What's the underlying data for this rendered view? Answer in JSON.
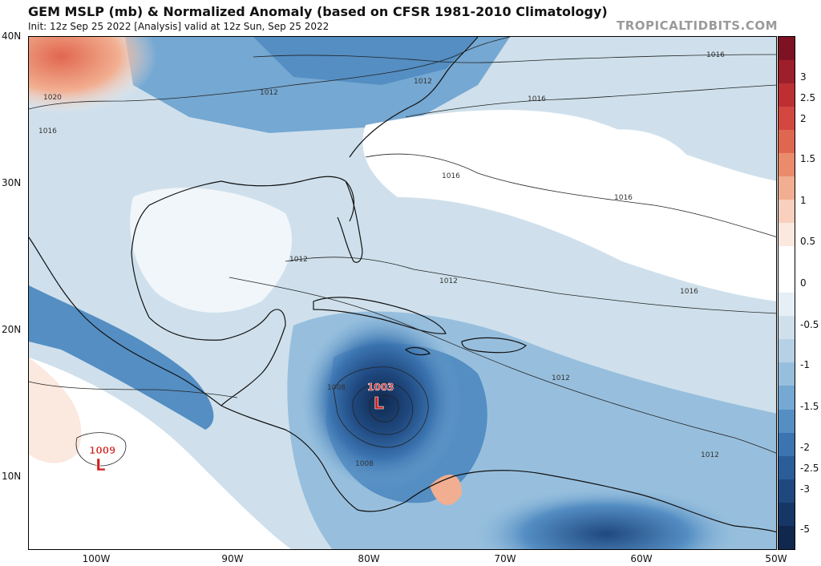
{
  "header": {
    "title": "GEM MSLP (mb) & Normalized Anomaly (based on CFSR 1981-2010 Climatology)",
    "subtitle": "Init: 12z Sep 25 2022  [Analysis]   valid at 12z Sun, Sep 25 2022",
    "brand": "TROPICALTIDBITS.COM"
  },
  "map": {
    "lat_labels": [
      "40N",
      "30N",
      "20N",
      "10N"
    ],
    "lon_labels": [
      "100W",
      "90W",
      "80W",
      "70W",
      "60W",
      "50W"
    ],
    "lows": [
      {
        "value": "1003",
        "symbol": "L"
      },
      {
        "value": "1009",
        "symbol": "L"
      }
    ],
    "isobar_labels": [
      "1016",
      "1016",
      "1016",
      "1016",
      "1016",
      "1012",
      "1012",
      "1012",
      "1012",
      "1012",
      "1012",
      "1008",
      "1008",
      "1020",
      "1016"
    ]
  },
  "colorbar": {
    "ticks": [
      "3",
      "2.5",
      "2",
      "1.5",
      "1",
      "0.5",
      "0",
      "-0.5",
      "-1",
      "-1.5",
      "-2",
      "-2.5",
      "-3",
      "-5"
    ],
    "colors_top_to_bottom": [
      "#7d1224",
      "#9d1f2b",
      "#bd2f33",
      "#d2473f",
      "#e0674f",
      "#ea8b6b",
      "#f2ae90",
      "#f8d0bd",
      "#fbe8df",
      "#ffffff",
      "#ffffff",
      "#e6eff6",
      "#cfe0ec",
      "#b6d1e6",
      "#97bfdd",
      "#75a8d2",
      "#548ec3",
      "#3b74b0",
      "#2b5d98",
      "#1f487f",
      "#163766",
      "#10284d"
    ]
  }
}
